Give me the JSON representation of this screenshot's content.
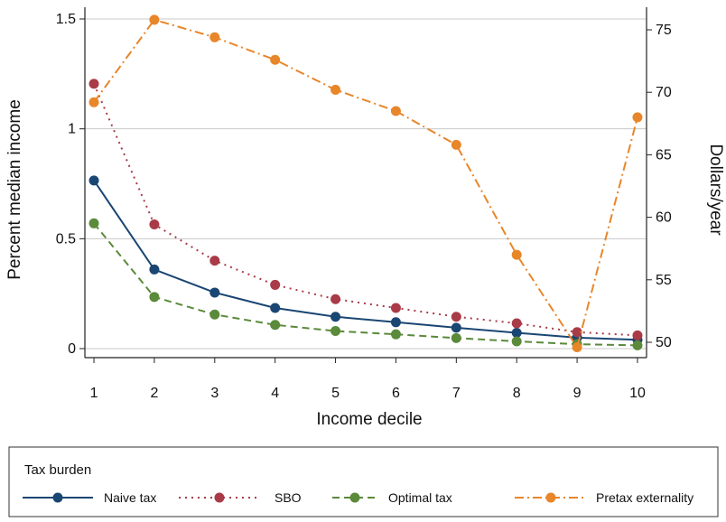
{
  "chart_data": {
    "type": "line",
    "xlabel": "Income decile",
    "ylabel_left": "Percent median income",
    "ylabel_right": "Dollars/year",
    "x": [
      1,
      2,
      3,
      4,
      5,
      6,
      7,
      8,
      9,
      10
    ],
    "x_ticks": [
      "1",
      "2",
      "3",
      "4",
      "5",
      "6",
      "7",
      "8",
      "9",
      "10"
    ],
    "ylim_left": [
      0,
      1.5
    ],
    "yticks_left": [
      "0",
      "0.5",
      "1",
      "1.5"
    ],
    "ylim_right": [
      50,
      75
    ],
    "yticks_right": [
      "50",
      "55",
      "60",
      "65",
      "70",
      "75"
    ],
    "grid": true,
    "legend": {
      "title": "Tax burden",
      "placement": "bottom"
    },
    "series": [
      {
        "name": "Naive tax",
        "axis": "left",
        "color": "#1a4673",
        "dash": "solid",
        "values": [
          0.765,
          0.36,
          0.255,
          0.185,
          0.145,
          0.12,
          0.095,
          0.072,
          0.05,
          0.04
        ]
      },
      {
        "name": "SBO",
        "axis": "left",
        "color": "#a83b47",
        "dash": "dotted",
        "values": [
          1.205,
          0.565,
          0.4,
          0.29,
          0.225,
          0.185,
          0.145,
          0.115,
          0.075,
          0.06
        ]
      },
      {
        "name": "Optimal tax",
        "axis": "left",
        "color": "#5a8a3a",
        "dash": "dashed",
        "values": [
          0.57,
          0.235,
          0.155,
          0.108,
          0.08,
          0.065,
          0.048,
          0.033,
          0.02,
          0.015
        ]
      },
      {
        "name": "Pretax externality",
        "axis": "right",
        "color": "#e8862a",
        "dash": "dashdot",
        "values": [
          69.2,
          75.8,
          74.4,
          72.6,
          70.2,
          68.5,
          65.8,
          57.0,
          49.6,
          68.0
        ]
      }
    ]
  }
}
